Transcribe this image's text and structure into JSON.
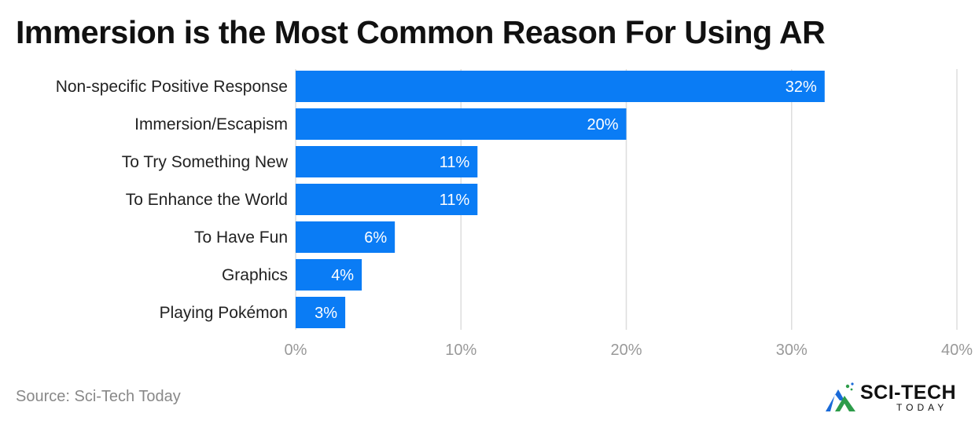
{
  "chart_data": {
    "type": "bar",
    "orientation": "horizontal",
    "title": "Immersion is the Most Common Reason For Using AR",
    "categories": [
      "Non-specific Positive Response",
      "Immersion/Escapism",
      "To Try Something New",
      "To Enhance the World",
      "To Have Fun",
      "Graphics",
      "Playing Pokémon"
    ],
    "values": [
      32,
      20,
      11,
      11,
      6,
      4,
      3
    ],
    "value_labels": [
      "32%",
      "20%",
      "11%",
      "11%",
      "6%",
      "4%",
      "3%"
    ],
    "xlim": [
      0,
      40
    ],
    "xticks": [
      0,
      10,
      20,
      30,
      40
    ],
    "xtick_labels": [
      "0%",
      "10%",
      "20%",
      "30%",
      "40%"
    ],
    "grid": true,
    "bar_color": "#0a7cf5",
    "grid_color": "#dddddd",
    "tick_label_color": "#999999"
  },
  "footer": {
    "source": "Source: Sci-Tech Today",
    "logo_text": "SCI-TECH",
    "logo_subtext": "TODAY"
  }
}
